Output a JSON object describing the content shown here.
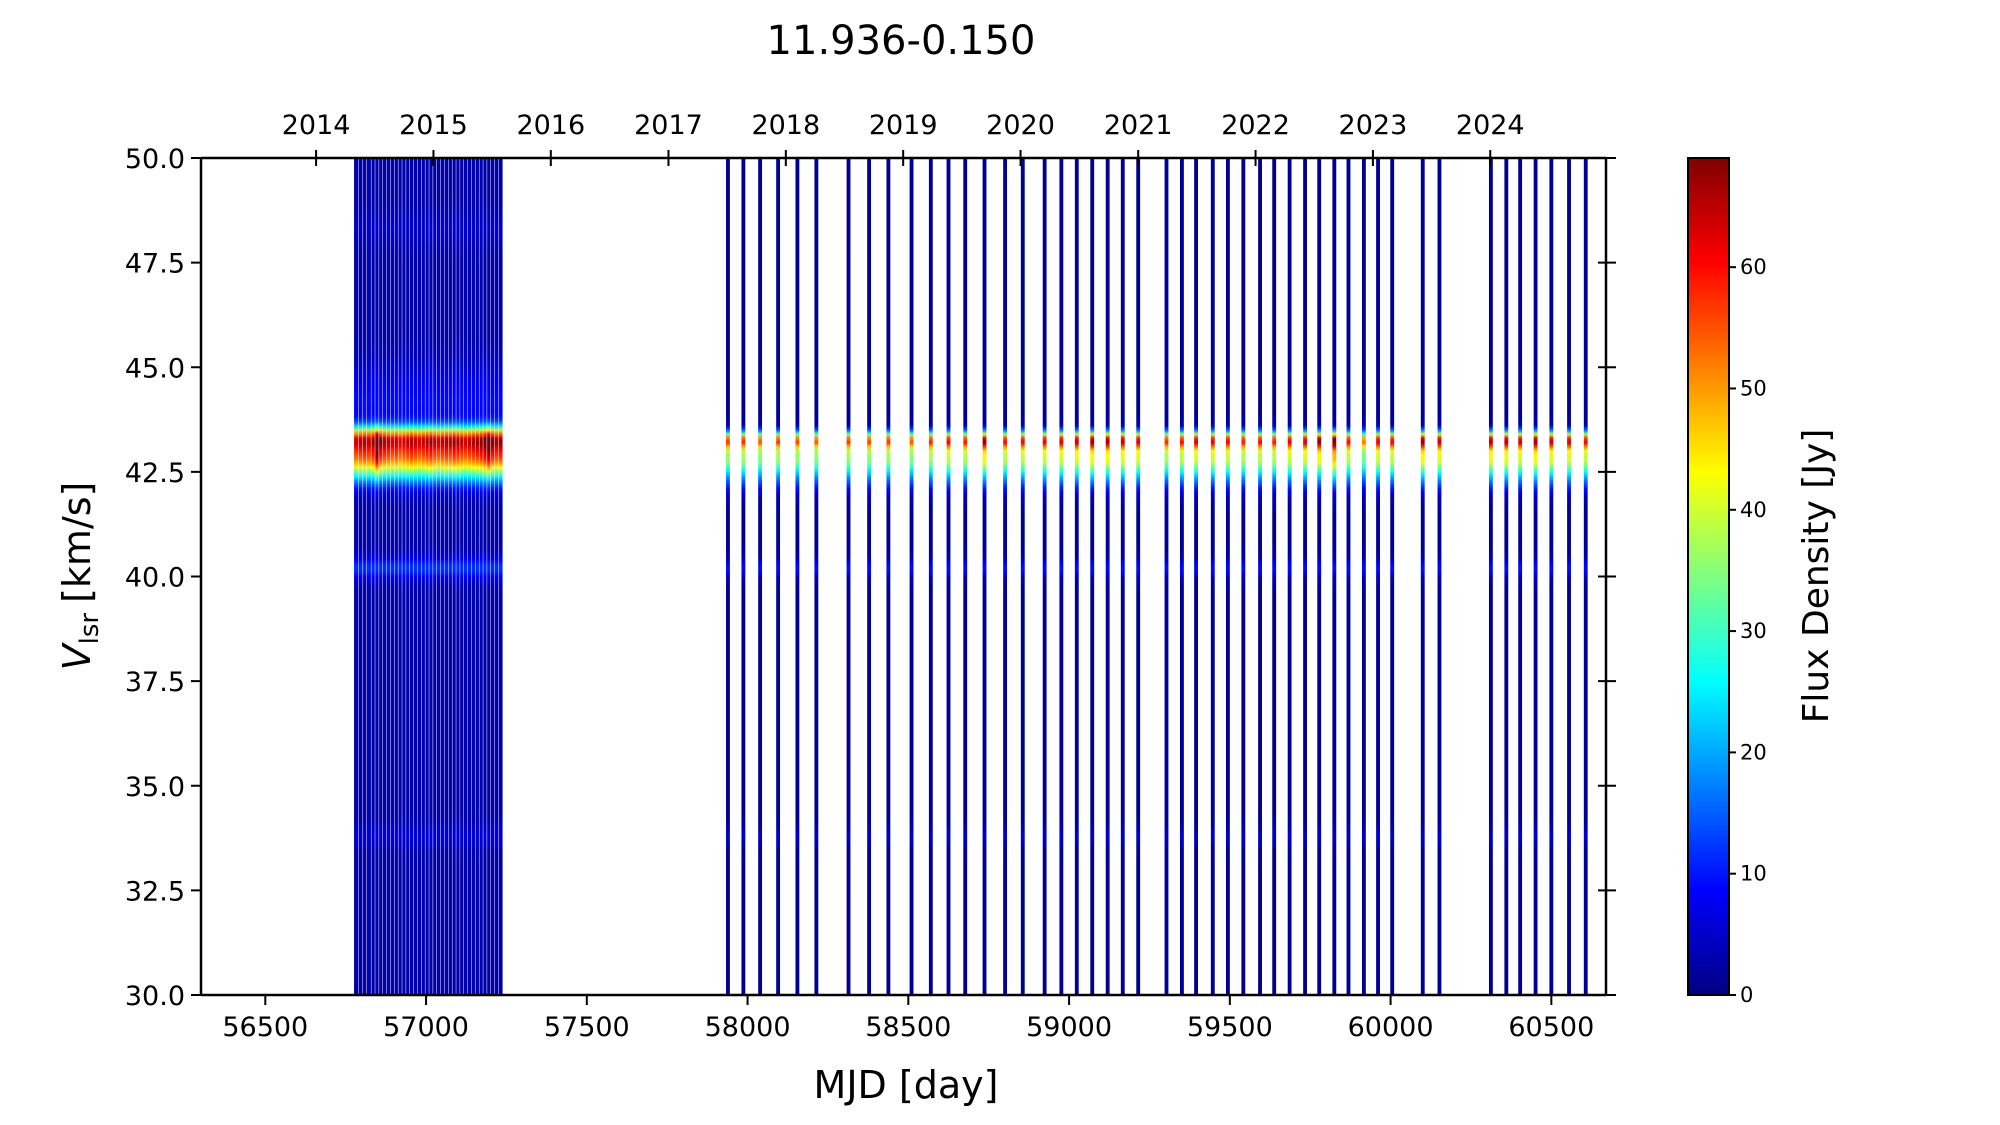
{
  "chart_data": {
    "type": "heatmap",
    "title": "11.936-0.150",
    "xlabel": "MJD [day]",
    "ylabel_main": "V",
    "ylabel_sub": "lsr",
    "ylabel_unit": "[km/s]",
    "colorbar_label": "Flux Density [Jy]",
    "colormap": "jet",
    "xlim": [
      56300,
      60670
    ],
    "ylim": [
      30.0,
      50.0
    ],
    "clim": [
      0,
      69
    ],
    "x_ticks": [
      56500,
      57000,
      57500,
      58000,
      58500,
      59000,
      59500,
      60000,
      60500
    ],
    "x_tick_labels": [
      "56500",
      "57000",
      "57500",
      "58000",
      "58500",
      "59000",
      "59500",
      "60000",
      "60500"
    ],
    "y_ticks": [
      30.0,
      32.5,
      35.0,
      37.5,
      40.0,
      42.5,
      45.0,
      47.5,
      50.0
    ],
    "y_tick_labels": [
      "30.0",
      "32.5",
      "35.0",
      "37.5",
      "40.0",
      "42.5",
      "45.0",
      "47.5",
      "50.0"
    ],
    "colorbar_ticks": [
      0,
      10,
      20,
      30,
      40,
      50,
      60
    ],
    "colorbar_tick_labels": [
      "0",
      "10",
      "20",
      "30",
      "40",
      "50",
      "60"
    ],
    "year_ticks_mjd": [
      56658,
      57023,
      57388,
      57754,
      58119,
      58484,
      58849,
      59215,
      59580,
      59945,
      60310
    ],
    "year_tick_labels": [
      "2014",
      "2015",
      "2016",
      "2017",
      "2018",
      "2019",
      "2020",
      "2021",
      "2022",
      "2023",
      "2024"
    ],
    "spectral_features_kms": [
      43.25,
      42.85,
      40.2,
      33.8
    ],
    "early_epochs": {
      "mjd": [
        56782,
        56796,
        56810,
        56822,
        56836,
        56848,
        56860,
        56872,
        56884,
        56896,
        56908,
        56920,
        56932,
        56944,
        56956,
        56968,
        56980,
        56992,
        57004,
        57016,
        57028,
        57040,
        57052,
        57064,
        57076,
        57088,
        57100,
        57112,
        57124,
        57136,
        57148,
        57160,
        57172,
        57184,
        57196,
        57208,
        57220,
        57232
      ],
      "peak_flux_jy": [
        46,
        47,
        48,
        47,
        49,
        58,
        50,
        48,
        47,
        46,
        47,
        45,
        46,
        47,
        48,
        47,
        46,
        47,
        48,
        49,
        47,
        46,
        47,
        48,
        47,
        49,
        48,
        47,
        46,
        47,
        48,
        49,
        50,
        52,
        56,
        50,
        48,
        49
      ]
    },
    "late_epochs": {
      "mjd": [
        57939,
        57987,
        58039,
        58095,
        58155,
        58214,
        58314,
        58378,
        58438,
        58510,
        58570,
        58625,
        58677,
        58737,
        58801,
        58856,
        58924,
        58976,
        59024,
        59072,
        59120,
        59167,
        59215,
        59303,
        59351,
        59395,
        59447,
        59494,
        59542,
        59594,
        59638,
        59686,
        59734,
        59778,
        59825,
        59869,
        59917,
        59961,
        60005,
        60100,
        60152,
        60312,
        60360,
        60403,
        60451,
        60500,
        60555,
        60607
      ],
      "peak_flux_jy": [
        50,
        51,
        48,
        50,
        49,
        48,
        50,
        49,
        50,
        48,
        51,
        54,
        52,
        60,
        53,
        54,
        55,
        56,
        57,
        60,
        59,
        57,
        56,
        51,
        53,
        56,
        55,
        54,
        52,
        53,
        52,
        55,
        56,
        60,
        66,
        53,
        46,
        55,
        54,
        60,
        57,
        58,
        58,
        56,
        60,
        57,
        56,
        54
      ]
    }
  }
}
